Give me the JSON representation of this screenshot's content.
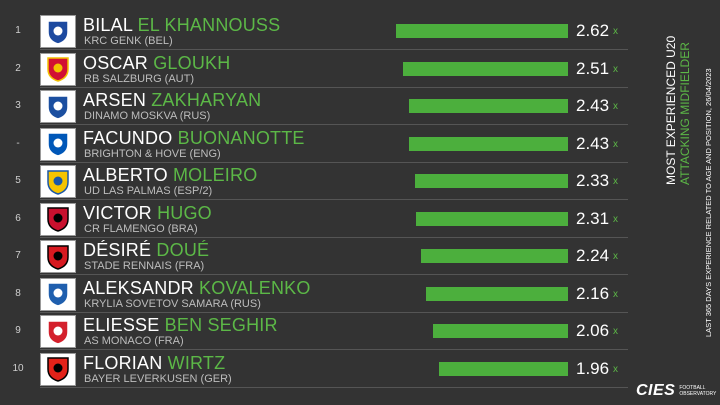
{
  "header": {
    "title": "MOST EXPERIENCED U20",
    "subtitle": "ATTACKING MIDFIELDER",
    "note": "LAST 365 DAYS EXPERIENCE RELATED TO AGE AND POSITION, 26/04/2023"
  },
  "brand": {
    "logo_text": "CIES",
    "sub_text_1": "FOOTBALL",
    "sub_text_2": "OBSERVATORY"
  },
  "colors": {
    "background": "#333333",
    "accent": "#5cb847",
    "bar": "#4caf3d"
  },
  "chart_data": {
    "type": "bar",
    "orientation": "horizontal",
    "unit": "x",
    "xlim": [
      0,
      2.62
    ],
    "rows": [
      {
        "rank": "1",
        "first": "BILAL",
        "last": "EL KHANNOUSS",
        "club": "KRC GENK (BEL)",
        "value": 2.62,
        "label": "2.62",
        "logo": "genk-logo",
        "logo_color": "#1d4aa0",
        "logo_color2": "#ffffff"
      },
      {
        "rank": "2",
        "first": "OSCAR",
        "last": "GLOUKH",
        "club": "RB SALZBURG (AUT)",
        "value": 2.51,
        "label": "2.51",
        "logo": "salzburg-logo",
        "logo_color": "#d11033",
        "logo_color2": "#f2c200"
      },
      {
        "rank": "3",
        "first": "ARSEN",
        "last": "ZAKHARYAN",
        "club": "DINAMO MOSKVA (RUS)",
        "value": 2.43,
        "label": "2.43",
        "logo": "dinamo-logo",
        "logo_color": "#1b4fa0",
        "logo_color2": "#ffffff"
      },
      {
        "rank": "-",
        "first": "FACUNDO",
        "last": "BUONANOTTE",
        "club": "BRIGHTON & HOVE (ENG)",
        "value": 2.43,
        "label": "2.43",
        "logo": "brighton-logo",
        "logo_color": "#0057b8",
        "logo_color2": "#ffffff"
      },
      {
        "rank": "5",
        "first": "ALBERTO",
        "last": "MOLEIRO",
        "club": "UD LAS PALMAS (ESP/2)",
        "value": 2.33,
        "label": "2.33",
        "logo": "laspalmas-logo",
        "logo_color": "#f5c400",
        "logo_color2": "#1a57a8"
      },
      {
        "rank": "6",
        "first": "VICTOR",
        "last": "HUGO",
        "club": "CR FLAMENGO (BRA)",
        "value": 2.31,
        "label": "2.31",
        "logo": "flamengo-logo",
        "logo_color": "#c8102e",
        "logo_color2": "#000000"
      },
      {
        "rank": "7",
        "first": "DÉSIRÉ",
        "last": "DOUÉ",
        "club": "STADE RENNAIS (FRA)",
        "value": 2.24,
        "label": "2.24",
        "logo": "rennes-logo",
        "logo_color": "#d71920",
        "logo_color2": "#000000"
      },
      {
        "rank": "8",
        "first": "ALEKSANDR",
        "last": "KOVALENKO",
        "club": "KRYLIA SOVETOV SAMARA (RUS)",
        "value": 2.16,
        "label": "2.16",
        "logo": "krylia-logo",
        "logo_color": "#1f5fae",
        "logo_color2": "#ffffff"
      },
      {
        "rank": "9",
        "first": "ELIESSE",
        "last": "BEN SEGHIR",
        "club": "AS MONACO (FRA)",
        "value": 2.06,
        "label": "2.06",
        "logo": "monaco-logo",
        "logo_color": "#d4202c",
        "logo_color2": "#ffffff"
      },
      {
        "rank": "10",
        "first": "FLORIAN",
        "last": "WIRTZ",
        "club": "BAYER LEVERKUSEN (GER)",
        "value": 1.96,
        "label": "1.96",
        "logo": "leverkusen-logo",
        "logo_color": "#e32219",
        "logo_color2": "#000000"
      }
    ]
  }
}
